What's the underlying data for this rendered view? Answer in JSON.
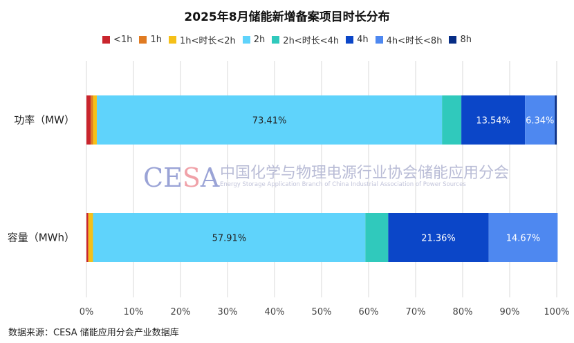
{
  "chart_data": {
    "type": "bar",
    "orientation": "horizontal",
    "stacked": true,
    "title": "2025年8月储能新增备案项目时长分布",
    "categories": [
      "功率（MW）",
      "容量（MWh）"
    ],
    "series": [
      {
        "name": "<1h",
        "color": "#c9252d",
        "values": [
          0.9,
          0.3
        ]
      },
      {
        "name": "1h",
        "color": "#e07b22",
        "values": [
          0.5,
          0.2
        ]
      },
      {
        "name": "1h<时长<2h",
        "color": "#f5c018",
        "values": [
          0.8,
          0.9
        ]
      },
      {
        "name": "2h",
        "color": "#5fd3fb",
        "values": [
          73.41,
          57.91
        ]
      },
      {
        "name": "2h<时长<4h",
        "color": "#30c9bc",
        "values": [
          4.11,
          4.86
        ]
      },
      {
        "name": "4h",
        "color": "#0b46c8",
        "values": [
          13.54,
          21.36
        ]
      },
      {
        "name": "4h<时长<8h",
        "color": "#4e88f0",
        "values": [
          6.34,
          14.67
        ]
      },
      {
        "name": "8h",
        "color": "#072d85",
        "values": [
          0.4,
          0.0
        ]
      }
    ],
    "data_labels": [
      {
        "category": 0,
        "series": 3,
        "text": "73.41%"
      },
      {
        "category": 0,
        "series": 5,
        "text": "13.54%"
      },
      {
        "category": 0,
        "series": 6,
        "text": "6.34%"
      },
      {
        "category": 1,
        "series": 3,
        "text": "57.91%"
      },
      {
        "category": 1,
        "series": 5,
        "text": "21.36%"
      },
      {
        "category": 1,
        "series": 6,
        "text": "14.67%"
      }
    ],
    "xlim": [
      0,
      100
    ],
    "xticks": [
      "0%",
      "10%",
      "20%",
      "30%",
      "40%",
      "50%",
      "60%",
      "70%",
      "80%",
      "90%",
      "100%"
    ],
    "grid": true,
    "legend_position": "top"
  },
  "watermark": {
    "logo": "CESA",
    "cn": "中国化学与物理电源行业协会储能应用分会",
    "en": "Energy Storage Application Branch of China Industrial Association of Power Sources"
  },
  "source": "数据来源：CESA 储能应用分会产业数据库"
}
